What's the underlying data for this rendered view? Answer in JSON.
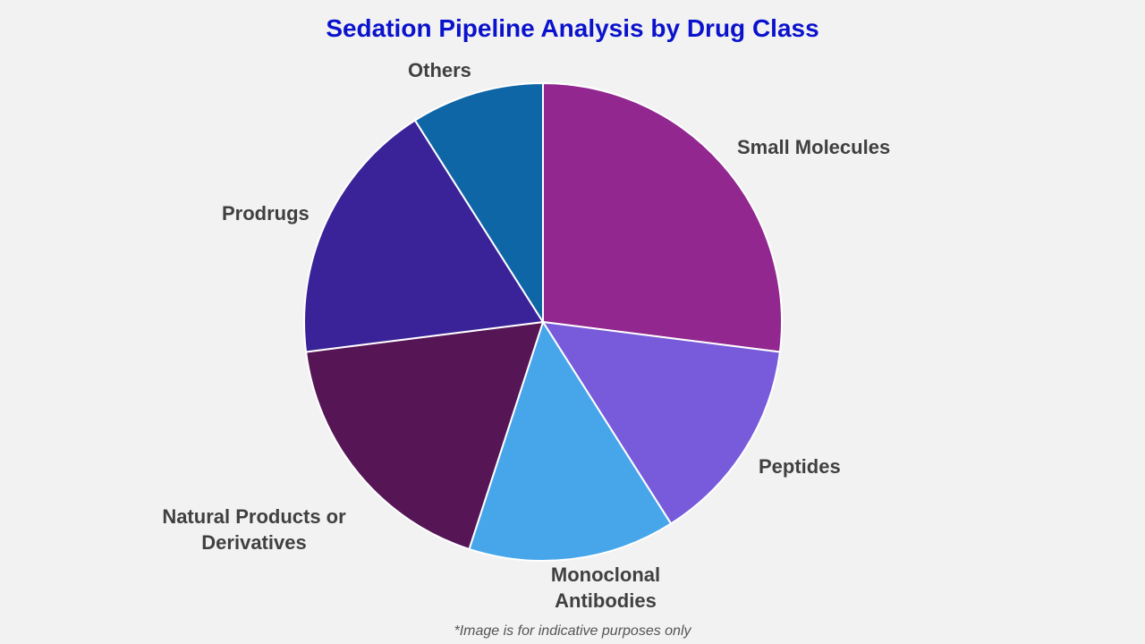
{
  "title": "Sedation Pipeline Analysis by Drug Class",
  "footnote": "*Image is for indicative purposes only",
  "labels": {
    "small_molecules": "Small Molecules",
    "peptides": "Peptides",
    "monoclonal_line1": "Monoclonal",
    "monoclonal_line2": "Antibodies",
    "natural_line1": "Natural Products or",
    "natural_line2": "Derivatives",
    "prodrugs": "Prodrugs",
    "others": "Others"
  },
  "chart_data": {
    "type": "pie",
    "title": "Sedation Pipeline Analysis by Drug Class",
    "categories": [
      "Small Molecules",
      "Peptides",
      "Monoclonal Antibodies",
      "Natural Products or Derivatives",
      "Prodrugs",
      "Others"
    ],
    "values": [
      27,
      14,
      14,
      18,
      18,
      9
    ],
    "colors": [
      "#92278f",
      "#775bdb",
      "#47a6ea",
      "#561656",
      "#3a2398",
      "#0f66a6"
    ],
    "start_angle": "12 o'clock",
    "direction": "clockwise",
    "legend": "none (labels outside slices)",
    "annotations": [
      "*Image is for indicative purposes only"
    ]
  }
}
